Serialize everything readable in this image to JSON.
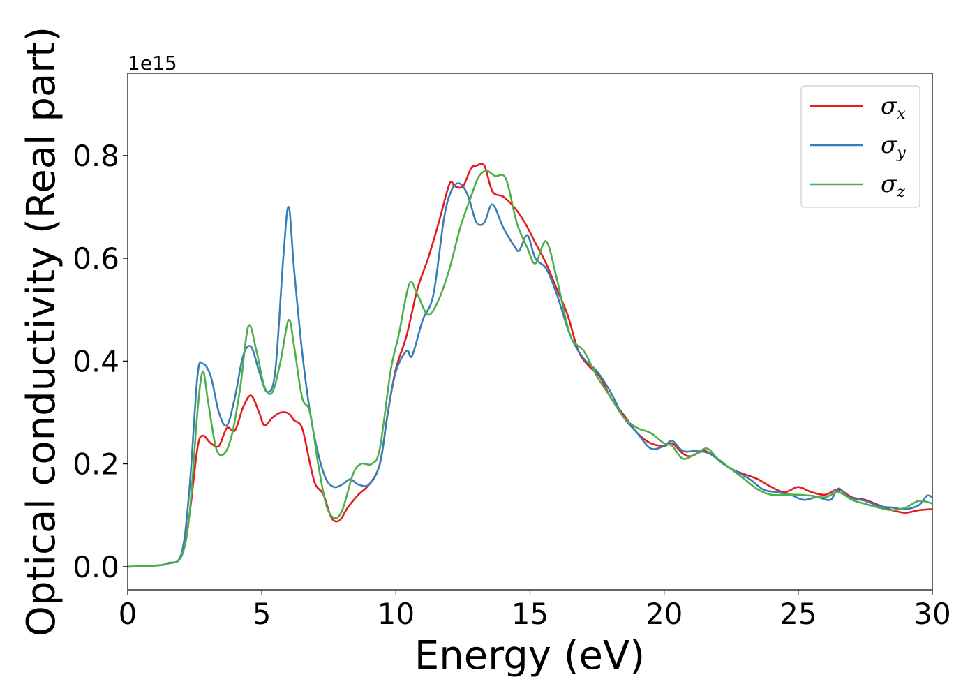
{
  "chart_data": {
    "type": "line",
    "title": "",
    "xlabel": "Energy (eV)",
    "ylabel": "Optical conductivity (Real part)",
    "y_offset_label": "1e15",
    "xlim": [
      0,
      30
    ],
    "ylim": [
      -0.045,
      0.96
    ],
    "xticks": [
      0,
      5,
      10,
      15,
      20,
      25,
      30
    ],
    "xtick_labels": [
      "0",
      "5",
      "10",
      "15",
      "20",
      "25",
      "30"
    ],
    "yticks": [
      0.0,
      0.2,
      0.4,
      0.6,
      0.8
    ],
    "ytick_labels": [
      "0.0",
      "0.2",
      "0.4",
      "0.6",
      "0.8"
    ],
    "grid": false,
    "legend_position": "top-right",
    "series": [
      {
        "name": "σx",
        "symbol": "σ",
        "subscript": "x",
        "color": "#e41a1c",
        "points": [
          [
            0,
            0
          ],
          [
            1,
            0.002
          ],
          [
            1.5,
            0.006
          ],
          [
            2,
            0.02
          ],
          [
            2.3,
            0.1
          ],
          [
            2.6,
            0.23
          ],
          [
            2.8,
            0.255
          ],
          [
            3.1,
            0.24
          ],
          [
            3.4,
            0.235
          ],
          [
            3.7,
            0.27
          ],
          [
            4.0,
            0.265
          ],
          [
            4.3,
            0.31
          ],
          [
            4.6,
            0.333
          ],
          [
            4.9,
            0.3
          ],
          [
            5.1,
            0.275
          ],
          [
            5.4,
            0.29
          ],
          [
            5.7,
            0.3
          ],
          [
            6.0,
            0.298
          ],
          [
            6.2,
            0.285
          ],
          [
            6.5,
            0.27
          ],
          [
            6.8,
            0.2
          ],
          [
            7.0,
            0.16
          ],
          [
            7.3,
            0.14
          ],
          [
            7.6,
            0.095
          ],
          [
            7.9,
            0.09
          ],
          [
            8.2,
            0.115
          ],
          [
            8.6,
            0.14
          ],
          [
            9.0,
            0.16
          ],
          [
            9.4,
            0.2
          ],
          [
            9.7,
            0.3
          ],
          [
            10.0,
            0.385
          ],
          [
            10.4,
            0.45
          ],
          [
            10.8,
            0.54
          ],
          [
            11.2,
            0.6
          ],
          [
            11.6,
            0.67
          ],
          [
            12.0,
            0.745
          ],
          [
            12.2,
            0.74
          ],
          [
            12.5,
            0.74
          ],
          [
            12.8,
            0.775
          ],
          [
            13.0,
            0.78
          ],
          [
            13.3,
            0.78
          ],
          [
            13.6,
            0.73
          ],
          [
            14.0,
            0.72
          ],
          [
            14.4,
            0.7
          ],
          [
            14.8,
            0.67
          ],
          [
            15.2,
            0.63
          ],
          [
            15.6,
            0.59
          ],
          [
            16.0,
            0.54
          ],
          [
            16.4,
            0.49
          ],
          [
            16.8,
            0.42
          ],
          [
            17.2,
            0.39
          ],
          [
            17.6,
            0.37
          ],
          [
            18.0,
            0.33
          ],
          [
            18.5,
            0.295
          ],
          [
            19.0,
            0.26
          ],
          [
            19.5,
            0.24
          ],
          [
            20.0,
            0.235
          ],
          [
            20.3,
            0.24
          ],
          [
            20.7,
            0.22
          ],
          [
            21.0,
            0.215
          ],
          [
            21.5,
            0.225
          ],
          [
            22.0,
            0.21
          ],
          [
            22.5,
            0.19
          ],
          [
            23.0,
            0.18
          ],
          [
            23.5,
            0.17
          ],
          [
            24.0,
            0.155
          ],
          [
            24.5,
            0.145
          ],
          [
            25.0,
            0.155
          ],
          [
            25.5,
            0.145
          ],
          [
            26.0,
            0.14
          ],
          [
            26.5,
            0.15
          ],
          [
            27.0,
            0.135
          ],
          [
            27.5,
            0.13
          ],
          [
            28.0,
            0.12
          ],
          [
            28.5,
            0.11
          ],
          [
            29.0,
            0.105
          ],
          [
            29.5,
            0.11
          ],
          [
            30.0,
            0.112
          ]
        ]
      },
      {
        "name": "σy",
        "symbol": "σ",
        "subscript": "y",
        "color": "#377eb8",
        "points": [
          [
            0,
            0
          ],
          [
            1,
            0.002
          ],
          [
            1.5,
            0.007
          ],
          [
            2,
            0.025
          ],
          [
            2.3,
            0.15
          ],
          [
            2.6,
            0.37
          ],
          [
            2.8,
            0.395
          ],
          [
            3.1,
            0.37
          ],
          [
            3.4,
            0.3
          ],
          [
            3.7,
            0.275
          ],
          [
            4.0,
            0.33
          ],
          [
            4.3,
            0.41
          ],
          [
            4.6,
            0.428
          ],
          [
            4.9,
            0.38
          ],
          [
            5.2,
            0.34
          ],
          [
            5.5,
            0.38
          ],
          [
            5.8,
            0.6
          ],
          [
            6.0,
            0.7
          ],
          [
            6.2,
            0.58
          ],
          [
            6.5,
            0.42
          ],
          [
            6.8,
            0.3
          ],
          [
            7.1,
            0.22
          ],
          [
            7.4,
            0.17
          ],
          [
            7.7,
            0.155
          ],
          [
            8.0,
            0.16
          ],
          [
            8.3,
            0.17
          ],
          [
            8.6,
            0.16
          ],
          [
            9.0,
            0.16
          ],
          [
            9.4,
            0.2
          ],
          [
            9.7,
            0.3
          ],
          [
            10.0,
            0.38
          ],
          [
            10.4,
            0.42
          ],
          [
            10.6,
            0.41
          ],
          [
            11.0,
            0.48
          ],
          [
            11.4,
            0.53
          ],
          [
            11.8,
            0.68
          ],
          [
            12.1,
            0.735
          ],
          [
            12.4,
            0.745
          ],
          [
            12.7,
            0.72
          ],
          [
            13.0,
            0.67
          ],
          [
            13.3,
            0.67
          ],
          [
            13.6,
            0.705
          ],
          [
            14.0,
            0.66
          ],
          [
            14.4,
            0.625
          ],
          [
            14.6,
            0.615
          ],
          [
            14.9,
            0.645
          ],
          [
            15.2,
            0.6
          ],
          [
            15.6,
            0.58
          ],
          [
            16.0,
            0.53
          ],
          [
            16.5,
            0.45
          ],
          [
            17.0,
            0.405
          ],
          [
            17.5,
            0.38
          ],
          [
            18.0,
            0.34
          ],
          [
            18.5,
            0.29
          ],
          [
            19.0,
            0.26
          ],
          [
            19.5,
            0.23
          ],
          [
            20.0,
            0.235
          ],
          [
            20.3,
            0.245
          ],
          [
            20.7,
            0.225
          ],
          [
            21.2,
            0.225
          ],
          [
            21.7,
            0.22
          ],
          [
            22.2,
            0.2
          ],
          [
            22.7,
            0.185
          ],
          [
            23.2,
            0.17
          ],
          [
            23.7,
            0.15
          ],
          [
            24.2,
            0.145
          ],
          [
            24.7,
            0.14
          ],
          [
            25.2,
            0.13
          ],
          [
            25.7,
            0.135
          ],
          [
            26.2,
            0.13
          ],
          [
            26.5,
            0.152
          ],
          [
            26.9,
            0.135
          ],
          [
            27.5,
            0.128
          ],
          [
            28.0,
            0.118
          ],
          [
            28.5,
            0.115
          ],
          [
            29.0,
            0.112
          ],
          [
            29.5,
            0.12
          ],
          [
            29.8,
            0.138
          ],
          [
            30.0,
            0.135
          ]
        ]
      },
      {
        "name": "σz",
        "symbol": "σ",
        "subscript": "z",
        "color": "#4daf4a",
        "points": [
          [
            0,
            0
          ],
          [
            1,
            0.002
          ],
          [
            1.5,
            0.006
          ],
          [
            2,
            0.02
          ],
          [
            2.3,
            0.1
          ],
          [
            2.6,
            0.3
          ],
          [
            2.8,
            0.38
          ],
          [
            3.0,
            0.32
          ],
          [
            3.3,
            0.23
          ],
          [
            3.6,
            0.22
          ],
          [
            3.9,
            0.26
          ],
          [
            4.2,
            0.35
          ],
          [
            4.5,
            0.468
          ],
          [
            4.8,
            0.42
          ],
          [
            5.1,
            0.35
          ],
          [
            5.4,
            0.34
          ],
          [
            5.7,
            0.4
          ],
          [
            6.0,
            0.48
          ],
          [
            6.2,
            0.43
          ],
          [
            6.5,
            0.33
          ],
          [
            6.8,
            0.3
          ],
          [
            7.1,
            0.2
          ],
          [
            7.4,
            0.12
          ],
          [
            7.7,
            0.095
          ],
          [
            8.0,
            0.11
          ],
          [
            8.4,
            0.18
          ],
          [
            8.7,
            0.2
          ],
          [
            9.1,
            0.2
          ],
          [
            9.4,
            0.23
          ],
          [
            9.8,
            0.38
          ],
          [
            10.1,
            0.45
          ],
          [
            10.5,
            0.55
          ],
          [
            10.8,
            0.53
          ],
          [
            11.2,
            0.49
          ],
          [
            11.6,
            0.52
          ],
          [
            12.0,
            0.58
          ],
          [
            12.4,
            0.66
          ],
          [
            12.8,
            0.72
          ],
          [
            13.1,
            0.76
          ],
          [
            13.4,
            0.77
          ],
          [
            13.7,
            0.76
          ],
          [
            14.1,
            0.755
          ],
          [
            14.5,
            0.67
          ],
          [
            14.9,
            0.62
          ],
          [
            15.2,
            0.59
          ],
          [
            15.6,
            0.633
          ],
          [
            16.0,
            0.56
          ],
          [
            16.5,
            0.45
          ],
          [
            17.0,
            0.42
          ],
          [
            17.5,
            0.37
          ],
          [
            18.0,
            0.33
          ],
          [
            18.5,
            0.29
          ],
          [
            19.0,
            0.27
          ],
          [
            19.5,
            0.26
          ],
          [
            20.0,
            0.24
          ],
          [
            20.3,
            0.235
          ],
          [
            20.7,
            0.21
          ],
          [
            21.2,
            0.22
          ],
          [
            21.6,
            0.23
          ],
          [
            22.0,
            0.21
          ],
          [
            22.5,
            0.19
          ],
          [
            23.0,
            0.17
          ],
          [
            23.5,
            0.15
          ],
          [
            24.0,
            0.14
          ],
          [
            24.5,
            0.14
          ],
          [
            25.0,
            0.14
          ],
          [
            25.5,
            0.138
          ],
          [
            26.0,
            0.135
          ],
          [
            26.5,
            0.145
          ],
          [
            27.0,
            0.13
          ],
          [
            27.5,
            0.122
          ],
          [
            28.0,
            0.115
          ],
          [
            28.5,
            0.11
          ],
          [
            29.0,
            0.115
          ],
          [
            29.5,
            0.128
          ],
          [
            30.0,
            0.123
          ]
        ]
      }
    ]
  }
}
